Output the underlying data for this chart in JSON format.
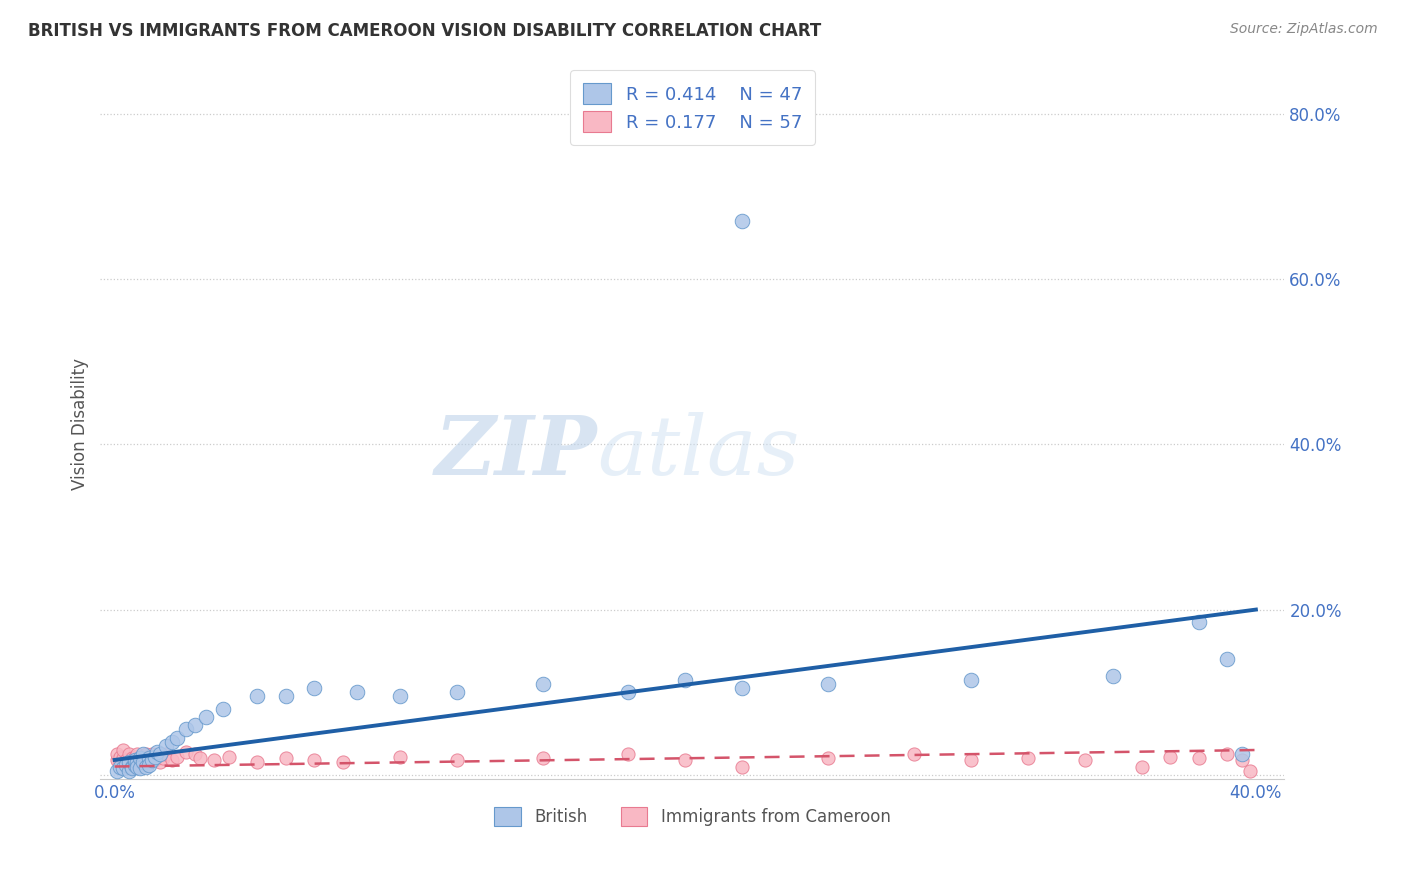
{
  "title": "BRITISH VS IMMIGRANTS FROM CAMEROON VISION DISABILITY CORRELATION CHART",
  "source": "Source: ZipAtlas.com",
  "ylabel": "Vision Disability",
  "xlabel": "",
  "xlim": [
    -0.005,
    0.41
  ],
  "ylim": [
    -0.005,
    0.855
  ],
  "xticks": [
    0.0,
    0.4
  ],
  "yticks": [
    0.0,
    0.2,
    0.4,
    0.6,
    0.8
  ],
  "british_R": 0.414,
  "british_N": 47,
  "cameroon_R": 0.177,
  "cameroon_N": 57,
  "british_color": "#aec6e8",
  "british_edge_color": "#6699cc",
  "british_line_color": "#1f5fa6",
  "cameroon_color": "#f9b8c4",
  "cameroon_edge_color": "#e87a90",
  "cameroon_line_color": "#d4546a",
  "background_color": "#ffffff",
  "grid_color": "#cccccc",
  "title_color": "#333333",
  "axis_label_color": "#555555",
  "tick_label_color": "#4472c4",
  "legend_text_color": "#4472c4",
  "watermark_color": "#d5e8f5",
  "british_x": [
    0.001,
    0.002,
    0.003,
    0.004,
    0.005,
    0.005,
    0.006,
    0.006,
    0.007,
    0.007,
    0.008,
    0.008,
    0.009,
    0.009,
    0.01,
    0.01,
    0.011,
    0.012,
    0.012,
    0.013,
    0.014,
    0.015,
    0.016,
    0.018,
    0.02,
    0.022,
    0.025,
    0.028,
    0.032,
    0.038,
    0.05,
    0.06,
    0.07,
    0.085,
    0.1,
    0.12,
    0.15,
    0.18,
    0.2,
    0.22,
    0.25,
    0.3,
    0.35,
    0.38,
    0.39,
    0.395,
    0.22
  ],
  "british_y": [
    0.005,
    0.01,
    0.008,
    0.012,
    0.005,
    0.015,
    0.01,
    0.008,
    0.012,
    0.018,
    0.015,
    0.01,
    0.02,
    0.008,
    0.025,
    0.015,
    0.01,
    0.02,
    0.012,
    0.018,
    0.022,
    0.028,
    0.025,
    0.035,
    0.04,
    0.045,
    0.055,
    0.06,
    0.07,
    0.08,
    0.095,
    0.095,
    0.105,
    0.1,
    0.095,
    0.1,
    0.11,
    0.1,
    0.115,
    0.105,
    0.11,
    0.115,
    0.12,
    0.185,
    0.14,
    0.025,
    0.67
  ],
  "cameroon_x": [
    0.001,
    0.001,
    0.002,
    0.002,
    0.003,
    0.003,
    0.004,
    0.004,
    0.005,
    0.005,
    0.006,
    0.006,
    0.007,
    0.007,
    0.008,
    0.008,
    0.009,
    0.009,
    0.01,
    0.01,
    0.011,
    0.011,
    0.012,
    0.013,
    0.014,
    0.015,
    0.016,
    0.017,
    0.018,
    0.02,
    0.022,
    0.025,
    0.028,
    0.03,
    0.035,
    0.04,
    0.05,
    0.06,
    0.07,
    0.08,
    0.1,
    0.12,
    0.15,
    0.18,
    0.2,
    0.22,
    0.25,
    0.28,
    0.3,
    0.32,
    0.34,
    0.36,
    0.37,
    0.38,
    0.39,
    0.395,
    0.398
  ],
  "cameroon_y": [
    0.018,
    0.025,
    0.015,
    0.022,
    0.02,
    0.03,
    0.018,
    0.012,
    0.025,
    0.01,
    0.02,
    0.015,
    0.022,
    0.018,
    0.025,
    0.01,
    0.02,
    0.015,
    0.022,
    0.018,
    0.025,
    0.012,
    0.02,
    0.025,
    0.018,
    0.022,
    0.015,
    0.02,
    0.025,
    0.018,
    0.022,
    0.028,
    0.025,
    0.02,
    0.018,
    0.022,
    0.015,
    0.02,
    0.018,
    0.015,
    0.022,
    0.018,
    0.02,
    0.025,
    0.018,
    0.01,
    0.02,
    0.025,
    0.018,
    0.02,
    0.018,
    0.01,
    0.022,
    0.02,
    0.025,
    0.018,
    0.005
  ],
  "watermark_zip": "ZIP",
  "watermark_atlas": "atlas",
  "trendline_british_x0": 0.0,
  "trendline_british_x1": 0.4,
  "trendline_british_y0": 0.018,
  "trendline_british_y1": 0.2,
  "trendline_cameroon_x0": 0.0,
  "trendline_cameroon_x1": 0.4,
  "trendline_cameroon_y0": 0.01,
  "trendline_cameroon_y1": 0.03
}
